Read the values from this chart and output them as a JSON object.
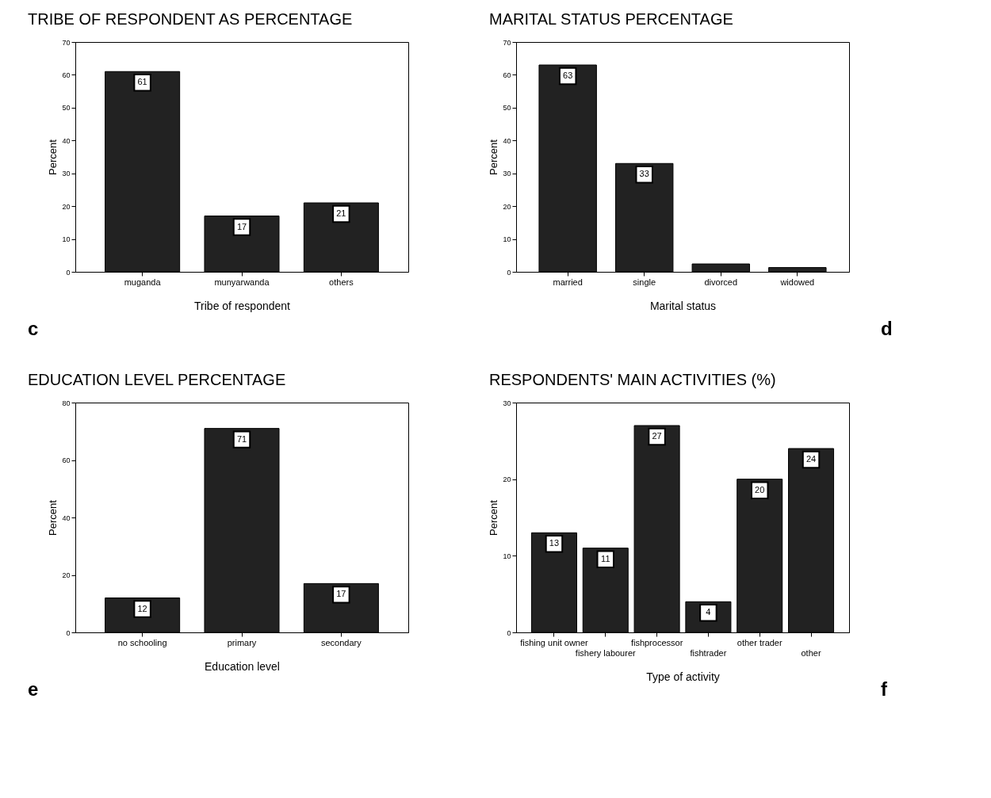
{
  "chart_data": [
    {
      "type": "bar",
      "title": "TRIBE OF RESPONDENT AS PERCENTAGE",
      "xlabel": "Tribe of respondent",
      "ylabel": "Percent",
      "categories": [
        "muganda",
        "munyarwanda",
        "others"
      ],
      "values": [
        61,
        17,
        21
      ],
      "color": "#222222",
      "ylim": [
        0,
        70
      ],
      "yticks": [
        0,
        10,
        20,
        30,
        40,
        50,
        60,
        70
      ],
      "data_labels": true,
      "grid": false,
      "annotations": [
        "c"
      ]
    },
    {
      "type": "bar",
      "title": "MARITAL STATUS PERCENTAGE",
      "xlabel": "Marital status",
      "ylabel": "Percent",
      "categories": [
        "married",
        "single",
        "divorced",
        "widowed"
      ],
      "values": [
        63,
        33,
        2.4,
        1.3
      ],
      "value_labels": [
        "63",
        "33",
        null,
        null
      ],
      "color": "#222222",
      "ylim": [
        0,
        70
      ],
      "yticks": [
        0,
        10,
        20,
        30,
        40,
        50,
        60,
        70
      ],
      "grid": false,
      "annotations": [
        "d"
      ]
    },
    {
      "type": "bar",
      "title": "EDUCATION LEVEL PERCENTAGE",
      "xlabel": "Education level",
      "ylabel": "Percent",
      "categories": [
        "no schooling",
        "primary",
        "secondary"
      ],
      "values": [
        12,
        71,
        17
      ],
      "color": "#222222",
      "ylim": [
        0,
        80
      ],
      "yticks": [
        0,
        20,
        40,
        60,
        80
      ],
      "data_labels": true,
      "grid": false,
      "annotations": [
        "e"
      ]
    },
    {
      "type": "bar",
      "title": "RESPONDENTS' MAIN ACTIVITIES (%)",
      "xlabel": "Type of activity",
      "ylabel": "Percent",
      "categories": [
        "fishing unit owner",
        "fishery labourer",
        "fishprocessor",
        "fishtrader",
        "other trader",
        "other"
      ],
      "values": [
        13,
        11,
        27,
        4,
        20,
        24
      ],
      "color": "#222222",
      "ylim": [
        0,
        30
      ],
      "yticks": [
        0,
        10,
        20,
        30
      ],
      "data_labels": true,
      "grid": false,
      "annotations": [
        "f"
      ]
    }
  ]
}
